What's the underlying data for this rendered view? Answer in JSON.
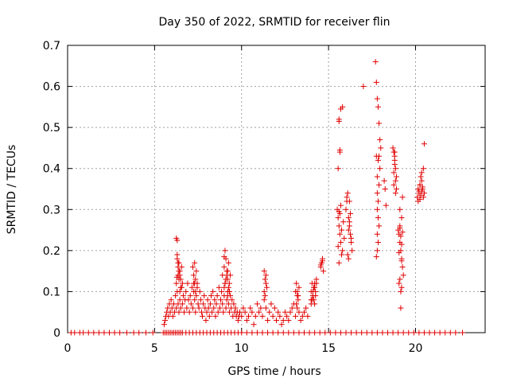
{
  "chart_data": {
    "type": "scatter",
    "title": "Day 350 of 2022, SRMTID for receiver flin",
    "xlabel": "GPS time / hours",
    "ylabel": "SRMTID / TECUs",
    "xlim": [
      0,
      24
    ],
    "ylim": [
      0,
      0.7
    ],
    "xticks": [
      0,
      5,
      10,
      15,
      20
    ],
    "yticks": [
      0,
      0.1,
      0.2,
      0.3,
      0.4,
      0.5,
      0.6,
      0.7
    ],
    "xtick_labels": [
      "0",
      "5",
      "10",
      "15",
      "20"
    ],
    "ytick_labels": [
      "0",
      "0.1",
      "0.2",
      "0.3",
      "0.4",
      "0.5",
      "0.6",
      "0.7"
    ],
    "grid": true,
    "marker": "+",
    "color": "#e00000",
    "series": [
      {
        "name": "SRMTID",
        "x": [
          0.2,
          0.4,
          0.7,
          0.9,
          1.2,
          1.5,
          1.8,
          2.1,
          2.4,
          2.7,
          3.0,
          3.4,
          3.8,
          4.1,
          4.5,
          4.9,
          5.5,
          5.6,
          5.7,
          5.8,
          5.9,
          6.0,
          6.1,
          6.2,
          6.3,
          6.4,
          6.5,
          6.6,
          6.8,
          7.0,
          7.2,
          7.4,
          7.6,
          7.8,
          8.0,
          8.2,
          8.4,
          8.6,
          8.8,
          9.0,
          9.2,
          9.4,
          9.6,
          9.8,
          10.0,
          10.3,
          10.6,
          10.9,
          11.2,
          11.5,
          11.8,
          12.1,
          12.4,
          12.7,
          13.0,
          13.3,
          13.6,
          13.9,
          14.2,
          14.5,
          14.8,
          15.1,
          15.4,
          15.7,
          16.0,
          16.3,
          16.6,
          16.9,
          17.2,
          17.5,
          17.8,
          18.1,
          18.4,
          18.7,
          19.0,
          19.3,
          19.6,
          19.9,
          20.2,
          20.5,
          20.8,
          21.1,
          21.4,
          21.7,
          22.0,
          22.3,
          22.7,
          5.55,
          5.6,
          5.65,
          5.7,
          5.75,
          5.8,
          5.85,
          5.9,
          5.95,
          6.0,
          6.05,
          6.1,
          6.15,
          6.2,
          6.25,
          6.3,
          6.35,
          6.4,
          6.45,
          6.5,
          6.55,
          6.6,
          6.65,
          6.7,
          6.75,
          6.8,
          6.85,
          6.9,
          6.95,
          7.0,
          7.05,
          7.1,
          7.15,
          7.2,
          7.25,
          7.3,
          7.35,
          7.4,
          7.45,
          7.5,
          7.55,
          7.6,
          7.65,
          7.7,
          7.75,
          7.8,
          7.85,
          7.9,
          7.95,
          8.0,
          8.05,
          8.1,
          8.15,
          8.2,
          8.25,
          8.3,
          8.35,
          8.4,
          8.45,
          8.5,
          8.55,
          8.6,
          8.65,
          8.7,
          8.75,
          8.8,
          8.85,
          8.9,
          8.95,
          9.0,
          9.05,
          9.1,
          9.15,
          9.2,
          9.25,
          9.3,
          9.35,
          9.4,
          9.45,
          9.5,
          9.55,
          9.6,
          9.65,
          9.7,
          9.75,
          9.8,
          9.85,
          9.9,
          6.25,
          6.3,
          6.35,
          6.4,
          6.45,
          6.5,
          6.55,
          6.6,
          6.3,
          6.35,
          6.4,
          6.45,
          6.5,
          6.25,
          6.35,
          6.45,
          6.3,
          6.4,
          6.28,
          7.2,
          7.25,
          7.3,
          7.35,
          7.4,
          7.45,
          7.3,
          7.35,
          7.25,
          8.9,
          9.0,
          9.05,
          9.1,
          9.15,
          9.2,
          9.25,
          9.3,
          9.35,
          9.0,
          9.1,
          9.2,
          9.3,
          9.05,
          9.15,
          9.25,
          9.1,
          9.2,
          9.0,
          9.3,
          10.0,
          10.1,
          10.2,
          10.3,
          10.4,
          10.5,
          10.6,
          10.7,
          10.8,
          10.9,
          11.0,
          11.1,
          11.2,
          11.3,
          11.4,
          11.5,
          11.6,
          11.7,
          11.8,
          11.9,
          12.0,
          12.1,
          12.2,
          12.3,
          12.4,
          12.5,
          12.6,
          12.7,
          12.8,
          12.9,
          13.0,
          13.1,
          13.2,
          13.3,
          13.4,
          13.5,
          13.6,
          13.7,
          13.8,
          11.3,
          11.35,
          11.4,
          11.45,
          11.3,
          11.4,
          11.35,
          13.1,
          13.15,
          13.2,
          13.25,
          13.3,
          13.15,
          13.2,
          13.25,
          14.0,
          14.05,
          14.1,
          14.15,
          14.2,
          14.25,
          14.3,
          14.0,
          14.1,
          14.2,
          14.05,
          14.15,
          14.25,
          14.1,
          14.2,
          14.0,
          14.3,
          14.55,
          14.6,
          14.65,
          14.7,
          14.55,
          14.65,
          15.5,
          15.55,
          15.6,
          15.65,
          15.7,
          15.75,
          15.8,
          15.85,
          15.9,
          15.55,
          15.65,
          15.75,
          15.6,
          15.7,
          15.8,
          15.6,
          15.65,
          15.55,
          15.7,
          15.6,
          15.65,
          15.6,
          16.0,
          16.05,
          16.1,
          16.15,
          16.2,
          16.25,
          16.3,
          16.35,
          16.05,
          16.15,
          16.25,
          16.1,
          16.2,
          16.3,
          16.15,
          16.2,
          17.0,
          17.7,
          17.75,
          17.8,
          17.85,
          17.9,
          17.95,
          18.0,
          17.75,
          17.85,
          17.95,
          17.8,
          17.9,
          17.8,
          17.85,
          17.8,
          17.85,
          17.9,
          17.8,
          17.85,
          17.8,
          17.75,
          17.9,
          18.2,
          18.25,
          18.3,
          18.7,
          18.75,
          18.8,
          18.85,
          18.9,
          18.75,
          18.85,
          18.8,
          18.75,
          18.8,
          18.85,
          18.9,
          18.8,
          19.0,
          19.05,
          19.1,
          19.15,
          19.2,
          19.25,
          19.3,
          19.05,
          19.15,
          19.25,
          19.1,
          19.2,
          19.1,
          19.15,
          19.2,
          19.05,
          19.1,
          19.2,
          19.15,
          19.1,
          19.25,
          19.2,
          20.1,
          20.15,
          20.2,
          20.25,
          20.3,
          20.35,
          20.4,
          20.45,
          20.5,
          20.15,
          20.25,
          20.35,
          20.45,
          20.2,
          20.3,
          20.4,
          20.5,
          20.25,
          20.35
        ],
        "y": [
          0,
          0,
          0,
          0,
          0,
          0,
          0,
          0,
          0,
          0,
          0,
          0,
          0,
          0,
          0,
          0,
          0,
          0,
          0,
          0,
          0,
          0,
          0,
          0,
          0,
          0,
          0,
          0,
          0,
          0,
          0,
          0,
          0,
          0,
          0,
          0,
          0,
          0,
          0,
          0,
          0,
          0,
          0,
          0,
          0,
          0,
          0,
          0,
          0,
          0,
          0,
          0,
          0,
          0,
          0,
          0,
          0,
          0,
          0,
          0,
          0,
          0,
          0,
          0,
          0,
          0,
          0,
          0,
          0,
          0,
          0,
          0,
          0,
          0,
          0,
          0,
          0,
          0,
          0,
          0,
          0,
          0,
          0,
          0,
          0,
          0,
          0,
          0.02,
          0.03,
          0.04,
          0.05,
          0.06,
          0.04,
          0.07,
          0.05,
          0.08,
          0.06,
          0.04,
          0.07,
          0.05,
          0.09,
          0.06,
          0.1,
          0.07,
          0.05,
          0.08,
          0.06,
          0.11,
          0.07,
          0.09,
          0.05,
          0.08,
          0.1,
          0.06,
          0.12,
          0.08,
          0.05,
          0.09,
          0.07,
          0.11,
          0.06,
          0.1,
          0.08,
          0.05,
          0.09,
          0.12,
          0.07,
          0.06,
          0.1,
          0.08,
          0.05,
          0.04,
          0.07,
          0.09,
          0.06,
          0.03,
          0.05,
          0.08,
          0.06,
          0.04,
          0.07,
          0.09,
          0.05,
          0.1,
          0.06,
          0.08,
          0.04,
          0.07,
          0.09,
          0.05,
          0.11,
          0.06,
          0.08,
          0.1,
          0.07,
          0.05,
          0.09,
          0.12,
          0.06,
          0.08,
          0.1,
          0.07,
          0.05,
          0.09,
          0.06,
          0.08,
          0.04,
          0.07,
          0.05,
          0.06,
          0.04,
          0.05,
          0.03,
          0.04,
          0.05,
          0.23,
          0.19,
          0.17,
          0.15,
          0.14,
          0.13,
          0.16,
          0.12,
          0.18,
          0.14,
          0.13,
          0.15,
          0.11,
          0.12,
          0.16,
          0.1,
          0.225,
          0.17,
          0.135,
          0.16,
          0.14,
          0.12,
          0.13,
          0.15,
          0.11,
          0.17,
          0.1,
          0.12,
          0.14,
          0.16,
          0.2,
          0.18,
          0.15,
          0.13,
          0.17,
          0.12,
          0.14,
          0.11,
          0.13,
          0.15,
          0.1,
          0.12,
          0.14,
          0.11,
          0.13,
          0.09,
          0.185,
          0.1,
          0.04,
          0.06,
          0.05,
          0.03,
          0.04,
          0.06,
          0.05,
          0.02,
          0.04,
          0.07,
          0.05,
          0.06,
          0.04,
          0.08,
          0.06,
          0.03,
          0.05,
          0.07,
          0.04,
          0.06,
          0.03,
          0.05,
          0.04,
          0.02,
          0.03,
          0.05,
          0.04,
          0.03,
          0.05,
          0.06,
          0.07,
          0.04,
          0.06,
          0.05,
          0.03,
          0.04,
          0.05,
          0.06,
          0.04,
          0.15,
          0.13,
          0.12,
          0.11,
          0.1,
          0.14,
          0.09,
          0.1,
          0.12,
          0.09,
          0.08,
          0.11,
          0.07,
          0.1,
          0.09,
          0.1,
          0.12,
          0.09,
          0.08,
          0.11,
          0.1,
          0.13,
          0.07,
          0.09,
          0.12,
          0.08,
          0.11,
          0.09,
          0.1,
          0.07,
          0.08,
          0.12,
          0.16,
          0.17,
          0.18,
          0.15,
          0.165,
          0.175,
          0.3,
          0.28,
          0.26,
          0.24,
          0.22,
          0.25,
          0.2,
          0.27,
          0.23,
          0.21,
          0.29,
          0.19,
          0.17,
          0.31,
          0.55,
          0.52,
          0.445,
          0.4,
          0.545,
          0.515,
          0.44,
          0.295,
          0.3,
          0.32,
          0.34,
          0.28,
          0.26,
          0.24,
          0.22,
          0.2,
          0.33,
          0.25,
          0.29,
          0.19,
          0.27,
          0.23,
          0.18,
          0.32,
          0.6,
          0.66,
          0.61,
          0.57,
          0.55,
          0.51,
          0.47,
          0.45,
          0.43,
          0.42,
          0.4,
          0.38,
          0.36,
          0.34,
          0.32,
          0.3,
          0.28,
          0.26,
          0.24,
          0.22,
          0.2,
          0.185,
          0.43,
          0.37,
          0.35,
          0.31,
          0.45,
          0.44,
          0.42,
          0.4,
          0.38,
          0.36,
          0.34,
          0.43,
          0.39,
          0.41,
          0.37,
          0.35,
          0.44,
          0.25,
          0.24,
          0.22,
          0.2,
          0.18,
          0.16,
          0.14,
          0.12,
          0.1,
          0.33,
          0.3,
          0.28,
          0.26,
          0.235,
          0.215,
          0.195,
          0.13,
          0.11,
          0.06,
          0.255,
          0.245,
          0.175,
          0.33,
          0.35,
          0.34,
          0.36,
          0.38,
          0.37,
          0.35,
          0.33,
          0.34,
          0.32,
          0.36,
          0.39,
          0.4,
          0.345,
          0.335,
          0.355,
          0.46,
          0.325,
          0.345
        ]
      }
    ]
  }
}
